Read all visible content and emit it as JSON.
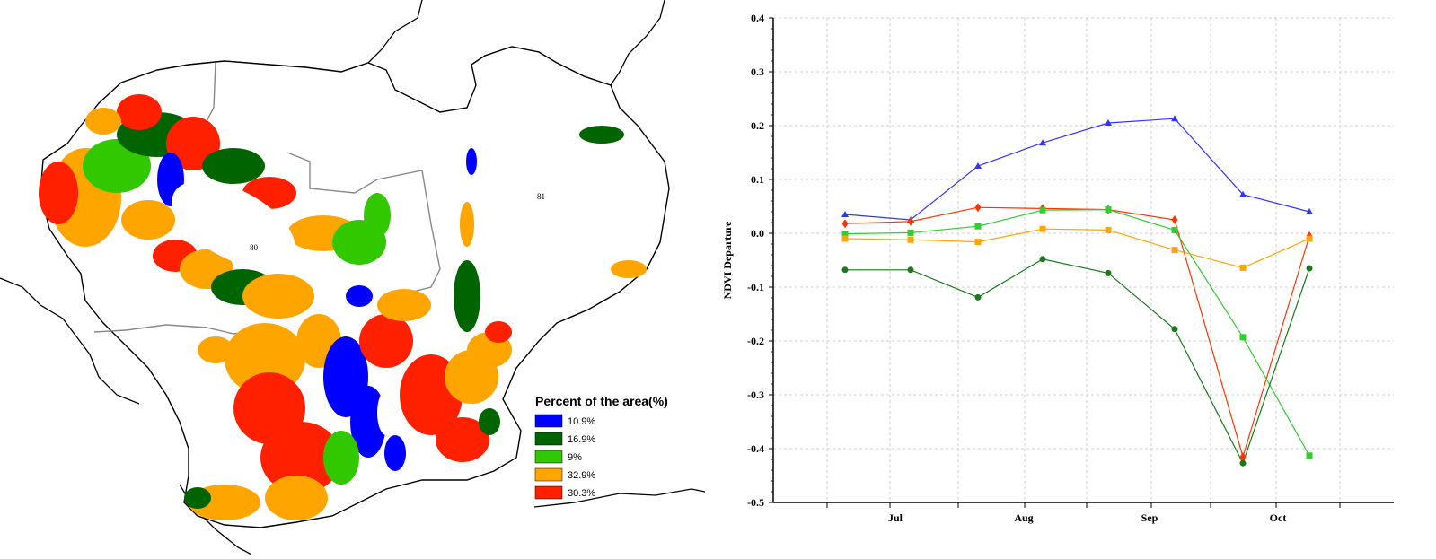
{
  "map": {
    "region_labels": [
      "80",
      "81"
    ],
    "legend": {
      "title": "Percent of the area(%)",
      "items": [
        {
          "label": "10.9%",
          "color": "#0000ff"
        },
        {
          "label": "16.9%",
          "color": "#006400"
        },
        {
          "label": "9%",
          "color": "#32c800"
        },
        {
          "label": "32.9%",
          "color": "#ffa500"
        },
        {
          "label": "30.3%",
          "color": "#ff2000"
        }
      ]
    }
  },
  "chart_data": {
    "type": "line",
    "title": "",
    "xlabel": "",
    "ylabel": "NDVI Departure",
    "ylim": [
      -0.5,
      0.4
    ],
    "yticks": [
      "0.4",
      "0.3",
      "0.2",
      "0.1",
      "0.0",
      "-0.1",
      "-0.2",
      "-0.3",
      "-0.4",
      "-0.5"
    ],
    "xticks": [
      "Jul",
      "Aug",
      "Sep",
      "Oct"
    ],
    "grid": true,
    "x": [
      1,
      2,
      3,
      4,
      5,
      6,
      7,
      8
    ],
    "series": [
      {
        "color": "#3333ff",
        "marker": "triangle",
        "values": [
          0.035,
          0.025,
          0.125,
          0.168,
          0.205,
          0.213,
          0.072,
          0.04
        ]
      },
      {
        "color": "#ff3300",
        "marker": "diamond",
        "values": [
          0.018,
          0.022,
          0.048,
          0.046,
          0.044,
          0.025,
          -0.415,
          -0.005
        ]
      },
      {
        "color": "#33cc33",
        "marker": "square",
        "values": [
          -0.001,
          0.001,
          0.013,
          0.043,
          0.044,
          0.006,
          -0.193,
          -0.413
        ]
      },
      {
        "color": "#ffa500",
        "marker": "square",
        "values": [
          -0.01,
          -0.012,
          -0.016,
          0.008,
          0.006,
          -0.031,
          -0.064,
          -0.01
        ]
      },
      {
        "color": "#1a7a1a",
        "marker": "circle",
        "values": [
          -0.068,
          -0.068,
          -0.119,
          -0.048,
          -0.074,
          -0.178,
          -0.427,
          -0.065
        ]
      }
    ]
  }
}
